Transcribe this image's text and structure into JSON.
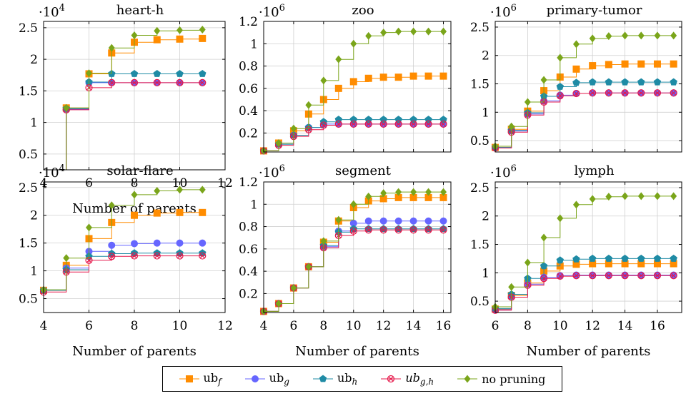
{
  "chart_data": [
    {
      "type": "line",
      "title": "heart-h",
      "exponent": "·10^4",
      "exp_base": "·10",
      "exp_power": "4",
      "xlabel": "Number of parents",
      "ylabel": "",
      "xlim": [
        4,
        12
      ],
      "ylim": [
        0.25,
        2.6
      ],
      "xticks": [
        4,
        6,
        8,
        10,
        12
      ],
      "yticks": [
        0.5,
        1,
        1.5,
        2,
        2.5
      ],
      "x": [
        5,
        6,
        7,
        8,
        9,
        10,
        11
      ],
      "series": [
        {
          "key": "ub_f",
          "values": [
            1.23,
            1.77,
            2.1,
            2.27,
            2.31,
            2.32,
            2.33
          ]
        },
        {
          "key": "ub_g",
          "values": [
            1.21,
            1.63,
            1.63,
            1.63,
            1.63,
            1.63,
            1.63
          ]
        },
        {
          "key": "ub_h",
          "values": [
            1.22,
            1.64,
            1.77,
            1.77,
            1.77,
            1.77,
            1.77
          ]
        },
        {
          "key": "ub_gh",
          "values": [
            1.2,
            1.55,
            1.63,
            1.63,
            1.63,
            1.63,
            1.63
          ]
        },
        {
          "key": "no_pruning",
          "values": [
            1.23,
            1.78,
            2.18,
            2.38,
            2.45,
            2.46,
            2.47
          ]
        }
      ]
    },
    {
      "type": "line",
      "title": "zoo",
      "exponent": "·10^6",
      "exp_base": "·10",
      "exp_power": "6",
      "xlabel": "",
      "ylabel": "",
      "xlim": [
        4,
        16.5
      ],
      "ylim": [
        0.03,
        1.2
      ],
      "xticks": [],
      "yticks": [
        0.2,
        0.4,
        0.6,
        0.8,
        1,
        1.2
      ],
      "x": [
        4,
        5,
        6,
        7,
        8,
        9,
        10,
        11,
        12,
        13,
        14,
        15,
        16
      ],
      "series": [
        {
          "key": "ub_f",
          "values": [
            0.04,
            0.11,
            0.22,
            0.37,
            0.5,
            0.6,
            0.66,
            0.69,
            0.7,
            0.7,
            0.71,
            0.71,
            0.71
          ]
        },
        {
          "key": "ub_g",
          "values": [
            0.04,
            0.1,
            0.18,
            0.25,
            0.28,
            0.28,
            0.28,
            0.28,
            0.28,
            0.28,
            0.28,
            0.28,
            0.28
          ]
        },
        {
          "key": "ub_h",
          "values": [
            0.04,
            0.1,
            0.18,
            0.25,
            0.3,
            0.32,
            0.32,
            0.32,
            0.32,
            0.32,
            0.32,
            0.32,
            0.32
          ]
        },
        {
          "key": "ub_gh",
          "values": [
            0.04,
            0.09,
            0.17,
            0.23,
            0.27,
            0.28,
            0.28,
            0.28,
            0.28,
            0.28,
            0.28,
            0.28,
            0.28
          ]
        },
        {
          "key": "no_pruning",
          "values": [
            0.04,
            0.11,
            0.24,
            0.45,
            0.67,
            0.86,
            1.0,
            1.07,
            1.1,
            1.11,
            1.11,
            1.11,
            1.11
          ]
        }
      ]
    },
    {
      "type": "line",
      "title": "primary-tumor",
      "exponent": "·10^6",
      "exp_base": "·10",
      "exp_power": "6",
      "xlabel": "",
      "ylabel": "",
      "xlim": [
        6,
        17.5
      ],
      "ylim": [
        0.3,
        2.6
      ],
      "xticks": [],
      "yticks": [
        0.5,
        1,
        1.5,
        2,
        2.5
      ],
      "x": [
        6,
        7,
        8,
        9,
        10,
        11,
        12,
        13,
        14,
        15,
        16,
        17
      ],
      "series": [
        {
          "key": "ub_f",
          "values": [
            0.38,
            0.7,
            1.02,
            1.38,
            1.62,
            1.76,
            1.82,
            1.84,
            1.85,
            1.85,
            1.85,
            1.85
          ]
        },
        {
          "key": "ub_g",
          "values": [
            0.38,
            0.67,
            0.97,
            1.2,
            1.3,
            1.33,
            1.34,
            1.34,
            1.34,
            1.34,
            1.34,
            1.34
          ]
        },
        {
          "key": "ub_h",
          "values": [
            0.38,
            0.68,
            0.99,
            1.28,
            1.45,
            1.52,
            1.53,
            1.53,
            1.53,
            1.53,
            1.53,
            1.53
          ]
        },
        {
          "key": "ub_gh",
          "values": [
            0.37,
            0.65,
            0.95,
            1.18,
            1.29,
            1.33,
            1.34,
            1.34,
            1.34,
            1.34,
            1.34,
            1.34
          ]
        },
        {
          "key": "no_pruning",
          "values": [
            0.4,
            0.75,
            1.18,
            1.57,
            1.96,
            2.2,
            2.3,
            2.34,
            2.35,
            2.35,
            2.35,
            2.35
          ]
        }
      ]
    },
    {
      "type": "line",
      "title": "solar-flare",
      "exponent": "·10^4",
      "exp_base": "·10",
      "exp_power": "4",
      "xlabel": "Number of parents",
      "ylabel": "",
      "xlim": [
        4,
        12
      ],
      "ylim": [
        0.25,
        2.6
      ],
      "xticks": [
        4,
        6,
        8,
        10,
        12
      ],
      "yticks": [
        0.5,
        1,
        1.5,
        2,
        2.5
      ],
      "x": [
        4,
        5,
        6,
        7,
        8,
        9,
        10,
        11
      ],
      "series": [
        {
          "key": "ub_f",
          "values": [
            0.65,
            1.1,
            1.58,
            1.87,
            2.0,
            2.04,
            2.05,
            2.05
          ]
        },
        {
          "key": "ub_g",
          "values": [
            0.65,
            1.05,
            1.35,
            1.46,
            1.49,
            1.5,
            1.5,
            1.5
          ]
        },
        {
          "key": "ub_h",
          "values": [
            0.65,
            1.02,
            1.26,
            1.31,
            1.32,
            1.32,
            1.32,
            1.32
          ]
        },
        {
          "key": "ub_gh",
          "values": [
            0.62,
            0.98,
            1.19,
            1.26,
            1.27,
            1.27,
            1.27,
            1.27
          ]
        },
        {
          "key": "no_pruning",
          "values": [
            0.66,
            1.23,
            1.78,
            2.18,
            2.37,
            2.44,
            2.46,
            2.46
          ]
        }
      ]
    },
    {
      "type": "line",
      "title": "segment",
      "exponent": "·10^6",
      "exp_base": "·10",
      "exp_power": "6",
      "xlabel": "Number of parents",
      "ylabel": "",
      "xlim": [
        4,
        16.5
      ],
      "ylim": [
        0.03,
        1.2
      ],
      "xticks": [
        4,
        6,
        8,
        10,
        12,
        14,
        16
      ],
      "yticks": [
        0.2,
        0.4,
        0.6,
        0.8,
        1,
        1.2
      ],
      "x": [
        4,
        5,
        6,
        7,
        8,
        9,
        10,
        11,
        12,
        13,
        14,
        15,
        16
      ],
      "series": [
        {
          "key": "ub_f",
          "values": [
            0.04,
            0.11,
            0.25,
            0.44,
            0.66,
            0.85,
            0.97,
            1.03,
            1.05,
            1.06,
            1.06,
            1.06,
            1.06
          ]
        },
        {
          "key": "ub_g",
          "values": [
            0.04,
            0.11,
            0.25,
            0.44,
            0.62,
            0.76,
            0.83,
            0.85,
            0.85,
            0.85,
            0.85,
            0.85,
            0.85
          ]
        },
        {
          "key": "ub_h",
          "values": [
            0.04,
            0.11,
            0.25,
            0.44,
            0.63,
            0.75,
            0.78,
            0.78,
            0.78,
            0.78,
            0.78,
            0.78,
            0.78
          ]
        },
        {
          "key": "ub_gh",
          "values": [
            0.04,
            0.11,
            0.25,
            0.44,
            0.61,
            0.72,
            0.76,
            0.77,
            0.77,
            0.77,
            0.77,
            0.77,
            0.77
          ]
        },
        {
          "key": "no_pruning",
          "values": [
            0.04,
            0.11,
            0.25,
            0.44,
            0.67,
            0.86,
            1.0,
            1.07,
            1.1,
            1.11,
            1.11,
            1.11,
            1.11
          ]
        }
      ]
    },
    {
      "type": "line",
      "title": "lymph",
      "exponent": "·10^6",
      "exp_base": "·10",
      "exp_power": "6",
      "xlabel": "Number of parents",
      "ylabel": "",
      "xlim": [
        6,
        17.5
      ],
      "ylim": [
        0.3,
        2.6
      ],
      "xticks": [
        6,
        8,
        10,
        12,
        14,
        16
      ],
      "yticks": [
        0.5,
        1,
        1.5,
        2,
        2.5
      ],
      "x": [
        6,
        7,
        8,
        9,
        10,
        11,
        12,
        13,
        14,
        15,
        16,
        17
      ],
      "series": [
        {
          "key": "ub_f",
          "values": [
            0.36,
            0.6,
            0.82,
            1.03,
            1.12,
            1.15,
            1.16,
            1.16,
            1.16,
            1.16,
            1.16,
            1.16
          ]
        },
        {
          "key": "ub_g",
          "values": [
            0.35,
            0.57,
            0.8,
            0.92,
            0.95,
            0.96,
            0.96,
            0.96,
            0.96,
            0.96,
            0.96,
            0.96
          ]
        },
        {
          "key": "ub_h",
          "values": [
            0.37,
            0.62,
            0.9,
            1.12,
            1.22,
            1.24,
            1.25,
            1.25,
            1.25,
            1.25,
            1.25,
            1.25
          ]
        },
        {
          "key": "ub_gh",
          "values": [
            0.34,
            0.57,
            0.78,
            0.9,
            0.94,
            0.95,
            0.95,
            0.95,
            0.95,
            0.95,
            0.95,
            0.95
          ]
        },
        {
          "key": "no_pruning",
          "values": [
            0.4,
            0.75,
            1.18,
            1.62,
            1.96,
            2.2,
            2.3,
            2.34,
            2.35,
            2.35,
            2.35,
            2.35
          ]
        }
      ]
    }
  ],
  "legend": [
    {
      "key": "ub_f",
      "base": "ub",
      "sub": "f",
      "italic": false,
      "color": "#ff8c00",
      "marker": "square"
    },
    {
      "key": "ub_g",
      "base": "ub",
      "sub": "g",
      "italic": false,
      "color": "#6666ff",
      "marker": "circle"
    },
    {
      "key": "ub_h",
      "base": "ub",
      "sub": "h",
      "italic": false,
      "color": "#1f8ba5",
      "marker": "pentagon"
    },
    {
      "key": "ub_gh",
      "base": "ub",
      "sub": "g,h",
      "italic": true,
      "color": "#e6194b",
      "marker": "otimes"
    },
    {
      "key": "no_pruning",
      "base": "no pruning",
      "sub": "",
      "italic": false,
      "color": "#7aa51a",
      "marker": "diamond"
    }
  ]
}
